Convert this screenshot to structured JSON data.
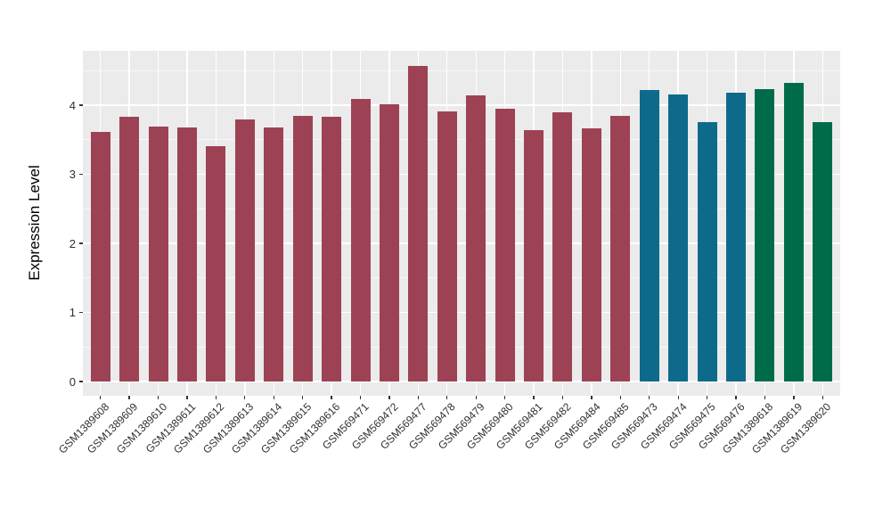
{
  "chart_data": {
    "type": "bar",
    "title": "",
    "xlabel": "",
    "ylabel": "Expression Level",
    "ylim": [
      0,
      4.8
    ],
    "yticks": [
      0,
      1,
      2,
      3,
      4
    ],
    "yticks_minor": [
      0.5,
      1.5,
      2.5,
      3.5,
      4.5
    ],
    "x_tick_angle": 45,
    "legend": "none",
    "grid": "white major+minor horizontal lines and vertical category lines on gray panel",
    "panel_background": "#EBEBEB",
    "grid_color": "#FFFFFF",
    "axis_text_color": "#2F2F2F",
    "categories": [
      "GSM1389608",
      "GSM1389609",
      "GSM1389610",
      "GSM1389611",
      "GSM1389612",
      "GSM1389613",
      "GSM1389614",
      "GSM1389615",
      "GSM1389616",
      "GSM569471",
      "GSM569472",
      "GSM569477",
      "GSM569478",
      "GSM569479",
      "GSM569480",
      "GSM569481",
      "GSM569482",
      "GSM569484",
      "GSM569485",
      "GSM569473",
      "GSM569474",
      "GSM569475",
      "GSM569476",
      "GSM1389618",
      "GSM1389619",
      "GSM1389620"
    ],
    "values": [
      3.61,
      3.83,
      3.69,
      3.68,
      3.41,
      3.79,
      3.68,
      3.84,
      3.83,
      4.09,
      4.01,
      4.57,
      3.91,
      4.14,
      3.95,
      3.64,
      3.9,
      3.67,
      3.85,
      4.22,
      4.15,
      3.75,
      4.18,
      4.23,
      4.32,
      3.75
    ],
    "bar_colors": [
      "#9D4254",
      "#9D4254",
      "#9D4254",
      "#9D4254",
      "#9D4254",
      "#9D4254",
      "#9D4254",
      "#9D4254",
      "#9D4254",
      "#9D4254",
      "#9D4254",
      "#9D4254",
      "#9D4254",
      "#9D4254",
      "#9D4254",
      "#9D4254",
      "#9D4254",
      "#9D4254",
      "#9D4254",
      "#0E6A8B",
      "#0E6A8B",
      "#0E6A8B",
      "#0E6A8B",
      "#006B4B",
      "#006B4B",
      "#006B4B"
    ],
    "color_groups": [
      {
        "color": "#9D4254",
        "bar_count": 19
      },
      {
        "color": "#0E6A8B",
        "bar_count": 4
      },
      {
        "color": "#006B4B",
        "bar_count": 3
      }
    ]
  }
}
